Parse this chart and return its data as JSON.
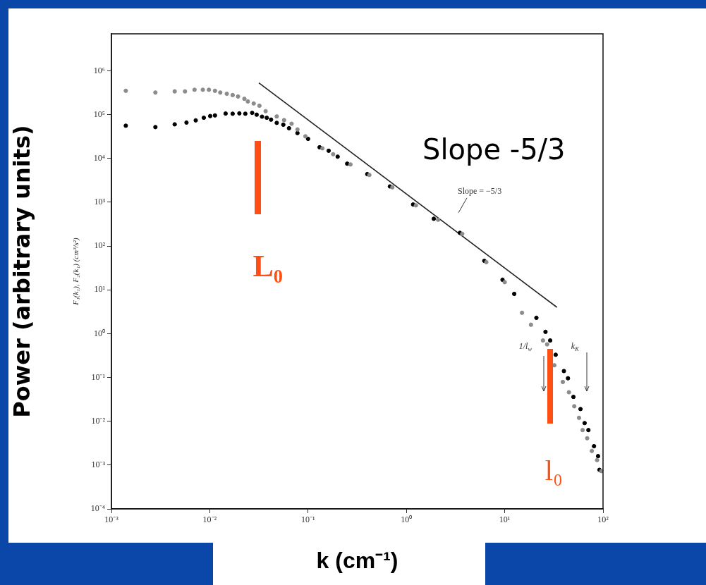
{
  "chart_data": {
    "type": "scatter",
    "xlabel": "k (cm⁻¹)",
    "ylabel": "Power (arbitrary units)",
    "log": "xy",
    "grid": false,
    "legend": false,
    "marker": "circle",
    "xlim": [
      0.001,
      100
    ],
    "ylim": [
      0.0001,
      7000000
    ],
    "xticks": [
      {
        "value": 0.001,
        "label": "10⁻³"
      },
      {
        "value": 0.01,
        "label": "10⁻²"
      },
      {
        "value": 0.1,
        "label": "10⁻¹"
      },
      {
        "value": 1,
        "label": "10⁰"
      },
      {
        "value": 10,
        "label": "10¹"
      },
      {
        "value": 100,
        "label": "10²"
      }
    ],
    "yticks": [
      {
        "value": 0.0001,
        "label": "10⁻⁴"
      },
      {
        "value": 0.001,
        "label": "10⁻³"
      },
      {
        "value": 0.01,
        "label": "10⁻²"
      },
      {
        "value": 0.1,
        "label": "10⁻¹"
      },
      {
        "value": 1,
        "label": "10⁰"
      },
      {
        "value": 10,
        "label": "10¹"
      },
      {
        "value": 100,
        "label": "10²"
      },
      {
        "value": 1000,
        "label": "10³"
      },
      {
        "value": 10000,
        "label": "10⁴"
      },
      {
        "value": 100000,
        "label": "10⁵"
      },
      {
        "value": 1000000,
        "label": "10⁶"
      }
    ],
    "series": [
      {
        "color": "#8c8c8c",
        "x": [
          0.0014,
          0.0028,
          0.0044,
          0.0056,
          0.007,
          0.0085,
          0.0098,
          0.0113,
          0.0128,
          0.0149,
          0.0171,
          0.0194,
          0.0225,
          0.0244,
          0.028,
          0.032,
          0.037,
          0.048,
          0.057,
          0.068,
          0.078,
          0.094,
          0.14,
          0.18,
          0.27,
          0.42,
          0.72,
          1.25,
          2.1,
          3.7,
          6.5,
          10,
          15,
          18.5,
          24.5,
          27,
          32,
          39,
          45,
          51,
          57,
          62,
          69,
          77,
          87,
          96
        ],
        "values": [
          350000,
          320000,
          340000,
          340000,
          370000,
          370000,
          370000,
          350000,
          320000,
          300000,
          280000,
          260000,
          230000,
          200000,
          180000,
          160000,
          120000,
          91000,
          75000,
          62000,
          46000,
          32000,
          17000,
          12500,
          7300,
          4200,
          2200,
          850,
          400,
          190,
          43,
          15,
          3,
          1.6,
          0.7,
          0.57,
          0.19,
          0.079,
          0.046,
          0.022,
          0.012,
          0.0063,
          0.0041,
          0.0021,
          0.0013,
          0.00073
        ]
      },
      {
        "color": "#000000",
        "x": [
          0.0014,
          0.0028,
          0.0044,
          0.0058,
          0.0072,
          0.0087,
          0.0101,
          0.0113,
          0.0145,
          0.0171,
          0.02,
          0.023,
          0.027,
          0.03,
          0.034,
          0.038,
          0.042,
          0.048,
          0.056,
          0.064,
          0.078,
          0.1,
          0.131,
          0.162,
          0.2,
          0.25,
          0.4,
          0.68,
          1.17,
          1.9,
          3.5,
          6.2,
          9.5,
          12.5,
          21,
          26,
          29,
          33,
          40,
          44,
          50,
          59,
          65,
          71,
          81,
          89,
          92
        ],
        "values": [
          56000,
          52000,
          60000,
          66000,
          74000,
          85000,
          93000,
          96000,
          106000,
          105000,
          107000,
          105000,
          110000,
          100000,
          90000,
          85000,
          77000,
          65000,
          59000,
          49000,
          38000,
          28000,
          18000,
          15000,
          11000,
          7600,
          4400,
          2300,
          890,
          420,
          200,
          46,
          17,
          8.1,
          2.3,
          1.1,
          0.7,
          0.33,
          0.14,
          0.096,
          0.036,
          0.019,
          0.0091,
          0.0063,
          0.0027,
          0.0016,
          0.00078
        ]
      },
      {
        "type": "line",
        "marker": "none",
        "color": "#222222",
        "x": [
          0.0316,
          34
        ],
        "values": [
          530000,
          4
        ]
      }
    ],
    "annotations": [
      "F₁(k₁), F₂(k₁) (cm³/s²)",
      "Slope -5/3",
      "Slope = −5/3",
      "L₀",
      "l₀",
      "1/l$_{w}$",
      "k$_{K}$"
    ]
  }
}
